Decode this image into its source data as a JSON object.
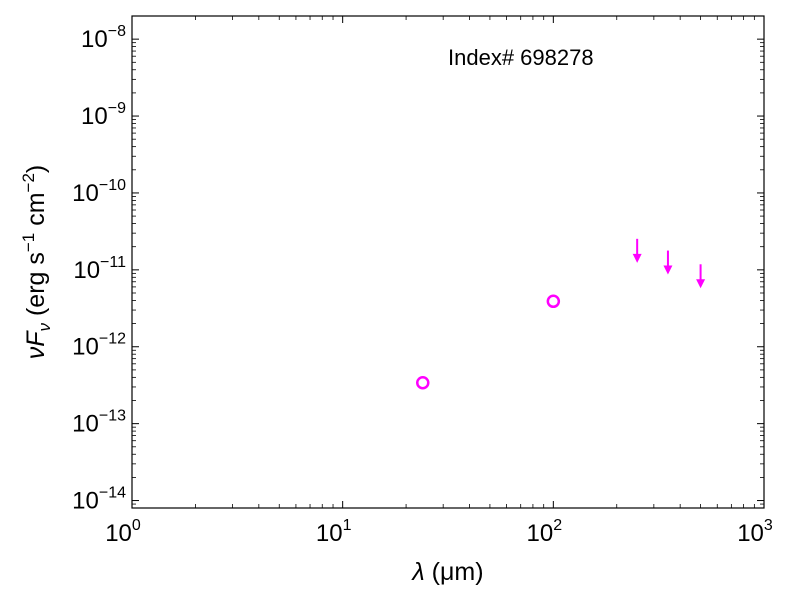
{
  "chart_data": {
    "type": "scatter",
    "title": "",
    "annotation": "Index# 698278",
    "xlabel": {
      "symbol": "λ",
      "unit": " (μm)"
    },
    "ylabel": {
      "prefix": "νF",
      "sub": "ν",
      "units": " (erg s",
      "sup1": "−1",
      "mid": " cm",
      "sup2": "−2",
      "close": ")"
    },
    "x_scale": "log",
    "y_scale": "log",
    "xlim": [
      1,
      1000
    ],
    "ylim": [
      8e-15,
      2e-08
    ],
    "x_ticks": [
      {
        "base": "10",
        "exp": "0",
        "value": 1
      },
      {
        "base": "10",
        "exp": "1",
        "value": 10
      },
      {
        "base": "10",
        "exp": "2",
        "value": 100
      },
      {
        "base": "10",
        "exp": "3",
        "value": 1000
      }
    ],
    "y_ticks": [
      {
        "base": "10",
        "exp": "−14",
        "value": 1e-14
      },
      {
        "base": "10",
        "exp": "−13",
        "value": 1e-13
      },
      {
        "base": "10",
        "exp": "−12",
        "value": 1e-12
      },
      {
        "base": "10",
        "exp": "−11",
        "value": 1e-11
      },
      {
        "base": "10",
        "exp": "−10",
        "value": 1e-10
      },
      {
        "base": "10",
        "exp": "−9",
        "value": 1e-09
      },
      {
        "base": "10",
        "exp": "−8",
        "value": 1e-08
      }
    ],
    "grid": false,
    "series": [
      {
        "marker": "open-circle",
        "color": "#ff00ff",
        "points": [
          {
            "x": 24,
            "y": 3.4e-13
          },
          {
            "x": 100,
            "y": 3.9e-12
          }
        ]
      },
      {
        "marker": "upper-limit-arrow",
        "color": "#ff00ff",
        "points": [
          {
            "x": 250,
            "y": 1.35e-11
          },
          {
            "x": 350,
            "y": 9.5e-12
          },
          {
            "x": 500,
            "y": 6.3e-12
          }
        ]
      }
    ]
  }
}
